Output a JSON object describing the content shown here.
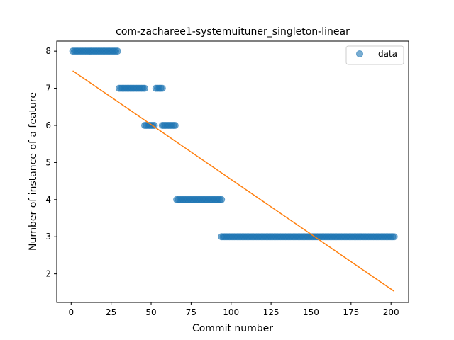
{
  "chart_data": {
    "type": "scatter",
    "title": "com-zacharee1-systemuituner_singleton-linear",
    "xlabel": "Commit number",
    "ylabel": "Number of instance of a feature",
    "xlim": [
      -9,
      211
    ],
    "ylim": [
      1.23,
      8.27
    ],
    "xticks": [
      0,
      25,
      50,
      75,
      100,
      125,
      150,
      175,
      200
    ],
    "yticks": [
      2,
      3,
      4,
      5,
      6,
      7,
      8
    ],
    "legend": {
      "label": "data",
      "position": "top-right"
    },
    "colors": {
      "points": "#1f77b4",
      "fit_line": "#ff7f0e"
    },
    "series": [
      {
        "name": "data",
        "kind": "scatter",
        "segments": [
          {
            "x_start": 1,
            "x_end": 29,
            "y": 8
          },
          {
            "x_start": 30,
            "x_end": 46,
            "y": 7
          },
          {
            "x_start": 53,
            "x_end": 57,
            "y": 7
          },
          {
            "x_start": 46,
            "x_end": 52,
            "y": 6
          },
          {
            "x_start": 57,
            "x_end": 65,
            "y": 6
          },
          {
            "x_start": 66,
            "x_end": 94,
            "y": 4
          },
          {
            "x_start": 94,
            "x_end": 202,
            "y": 3
          }
        ]
      },
      {
        "name": "linear fit",
        "kind": "line",
        "x": [
          1,
          202
        ],
        "y": [
          7.47,
          1.53
        ]
      }
    ]
  }
}
